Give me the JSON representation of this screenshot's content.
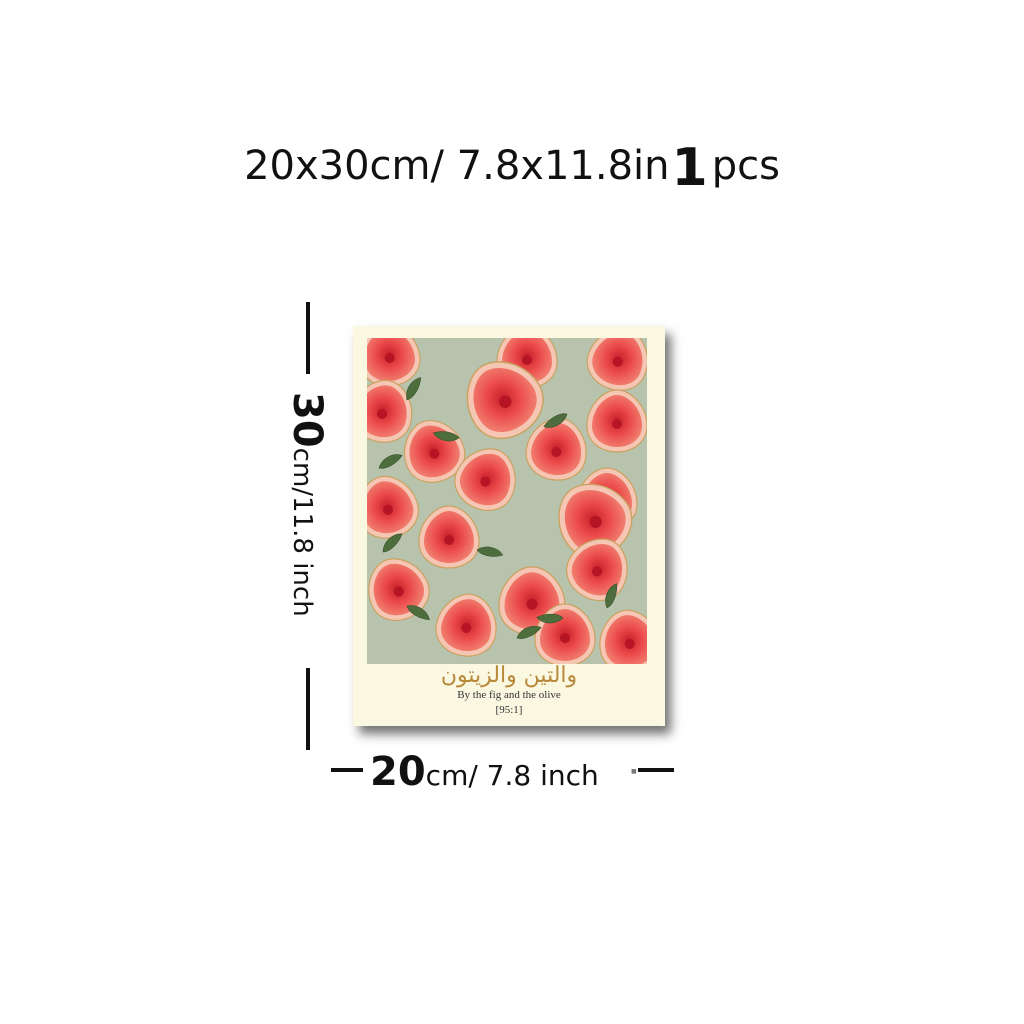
{
  "headline": {
    "size_text": "20x30cm/ 7.8x11.8in",
    "quantity": "1",
    "unit": "pcs"
  },
  "height_label": {
    "value": "30",
    "rest": "cm/11.8 inch"
  },
  "width_label": {
    "value": "20",
    "rest": "cm/ 7.8 inch"
  },
  "poster": {
    "arabic_title": "والتين والزيتون",
    "english_title": "By the fig and the olive",
    "reference": "[95:1]",
    "colors": {
      "paper": "#fbf8e2",
      "background": "#b7c3ad",
      "fig_flesh": "#e8484a",
      "fig_skin": "#f6c6b4",
      "leaf": "#4d6e3c",
      "title_gold": "#b8893a"
    }
  },
  "icons": [
    "fig-icon",
    "olive-leaf-icon"
  ]
}
